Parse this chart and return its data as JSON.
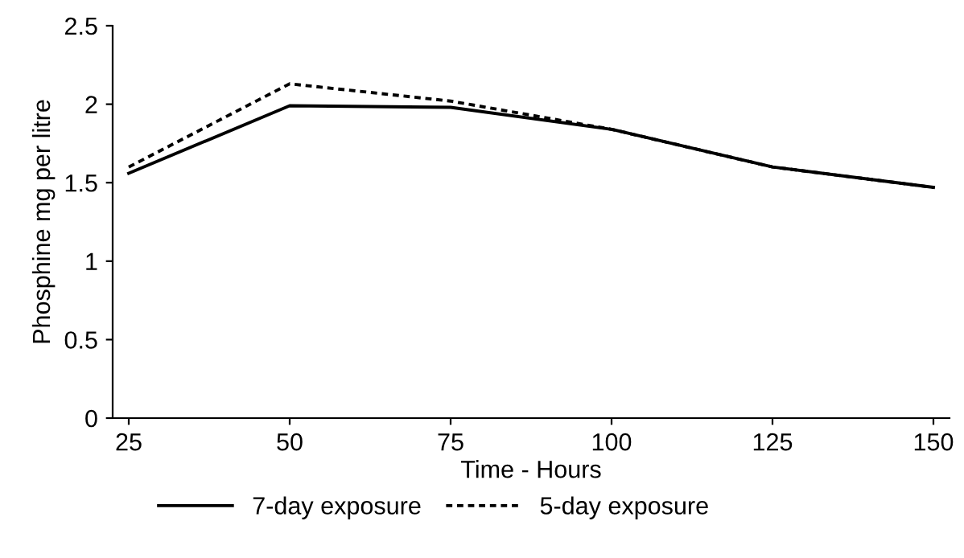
{
  "chart_data": {
    "type": "line",
    "xlabel": "Time - Hours",
    "ylabel": "Phosphine mg per litre",
    "x": [
      25,
      50,
      75,
      100,
      125,
      150
    ],
    "series": [
      {
        "name": "7-day exposure",
        "color": "#000000",
        "line_style": "solid",
        "values": [
          1.56,
          1.99,
          1.98,
          1.84,
          1.6,
          1.47
        ]
      },
      {
        "name": "5-day exposure",
        "color": "#000000",
        "line_style": "dotted",
        "values": [
          1.6,
          2.13,
          2.02,
          1.84,
          1.6,
          1.47
        ]
      }
    ],
    "xlim": [
      22.5,
      152.5
    ],
    "ylim": [
      0,
      2.5
    ],
    "xticks": [
      25,
      50,
      75,
      100,
      125,
      150
    ],
    "yticks": [
      0,
      0.5,
      1,
      1.5,
      2,
      2.5
    ],
    "grid": false,
    "legend": "bottom",
    "marker": "none"
  }
}
